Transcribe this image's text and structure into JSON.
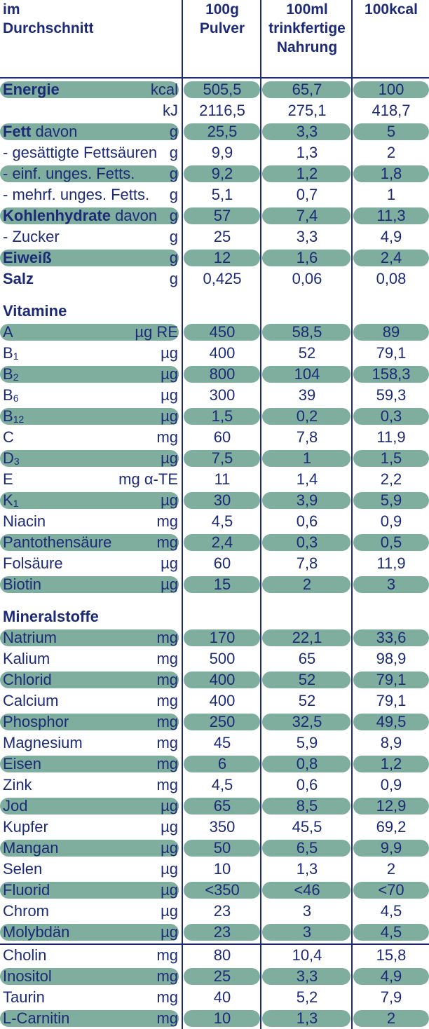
{
  "header": {
    "col0": [
      "im",
      "Durchschnitt"
    ],
    "col1": [
      "100g",
      "Pulver"
    ],
    "col2": [
      "100ml",
      "trinkfertige",
      "Nahrung"
    ],
    "col3": [
      "100kcal"
    ]
  },
  "sections": [
    {
      "title": "",
      "rows": [
        {
          "bold": "Energie",
          "rest": "",
          "sub": "",
          "unit": "kcal",
          "v1": "505,5",
          "v2": "65,7",
          "v3": "100",
          "band": true
        },
        {
          "bold": "",
          "rest": "",
          "sub": "",
          "unit": "kJ",
          "v1": "2116,5",
          "v2": "275,1",
          "v3": "418,7",
          "band": false
        },
        {
          "bold": "Fett",
          "rest": " davon",
          "sub": "",
          "unit": "g",
          "v1": "25,5",
          "v2": "3,3",
          "v3": "5",
          "band": true
        },
        {
          "bold": "",
          "rest": "- gesättigte Fettsäuren",
          "sub": "",
          "unit": "g",
          "v1": "9,9",
          "v2": "1,3",
          "v3": "2",
          "band": false
        },
        {
          "bold": "",
          "rest": "- einf. unges. Fetts.",
          "sub": "",
          "unit": "g",
          "v1": "9,2",
          "v2": "1,2",
          "v3": "1,8",
          "band": true
        },
        {
          "bold": "",
          "rest": "- mehrf. unges. Fetts.",
          "sub": "",
          "unit": "g",
          "v1": "5,1",
          "v2": "0,7",
          "v3": "1",
          "band": false
        },
        {
          "bold": "Kohlenhydrate",
          "rest": " davon",
          "sub": "",
          "unit": "g",
          "v1": "57",
          "v2": "7,4",
          "v3": "11,3",
          "band": true
        },
        {
          "bold": "",
          "rest": "- Zucker",
          "sub": "",
          "unit": "g",
          "v1": "25",
          "v2": "3,3",
          "v3": "4,9",
          "band": false
        },
        {
          "bold": "Eiweiß",
          "rest": "",
          "sub": "",
          "unit": "g",
          "v1": "12",
          "v2": "1,6",
          "v3": "2,4",
          "band": true
        },
        {
          "bold": "Salz",
          "rest": "",
          "sub": "",
          "unit": "g",
          "v1": "0,425",
          "v2": "0,06",
          "v3": "0,08",
          "band": false
        }
      ]
    },
    {
      "title": "Vitamine",
      "rows": [
        {
          "bold": "",
          "rest": "A",
          "sub": "",
          "unit": "µg RE",
          "v1": "450",
          "v2": "58,5",
          "v3": "89",
          "band": true
        },
        {
          "bold": "",
          "rest": "B",
          "sub": "1",
          "unit": "µg",
          "v1": "400",
          "v2": "52",
          "v3": "79,1",
          "band": false
        },
        {
          "bold": "",
          "rest": "B",
          "sub": "2",
          "unit": "µg",
          "v1": "800",
          "v2": "104",
          "v3": "158,3",
          "band": true
        },
        {
          "bold": "",
          "rest": "B",
          "sub": "6",
          "unit": "µg",
          "v1": "300",
          "v2": "39",
          "v3": "59,3",
          "band": false
        },
        {
          "bold": "",
          "rest": "B",
          "sub": "12",
          "unit": "µg",
          "v1": "1,5",
          "v2": "0,2",
          "v3": "0,3",
          "band": true
        },
        {
          "bold": "",
          "rest": "C",
          "sub": "",
          "unit": "mg",
          "v1": "60",
          "v2": "7,8",
          "v3": "11,9",
          "band": false
        },
        {
          "bold": "",
          "rest": "D",
          "sub": "3",
          "unit": "µg",
          "v1": "7,5",
          "v2": "1",
          "v3": "1,5",
          "band": true
        },
        {
          "bold": "",
          "rest": "E",
          "sub": "",
          "unit": "mg α-TE",
          "v1": "11",
          "v2": "1,4",
          "v3": "2,2",
          "band": false
        },
        {
          "bold": "",
          "rest": "K",
          "sub": "1",
          "unit": "µg",
          "v1": "30",
          "v2": "3,9",
          "v3": "5,9",
          "band": true
        },
        {
          "bold": "",
          "rest": "Niacin",
          "sub": "",
          "unit": "mg",
          "v1": "4,5",
          "v2": "0,6",
          "v3": "0,9",
          "band": false
        },
        {
          "bold": "",
          "rest": "Pantothensäure",
          "sub": "",
          "unit": "mg",
          "v1": "2,4",
          "v2": "0,3",
          "v3": "0,5",
          "band": true
        },
        {
          "bold": "",
          "rest": "Folsäure",
          "sub": "",
          "unit": "µg",
          "v1": "60",
          "v2": "7,8",
          "v3": "11,9",
          "band": false
        },
        {
          "bold": "",
          "rest": "Biotin",
          "sub": "",
          "unit": "µg",
          "v1": "15",
          "v2": "2",
          "v3": "3",
          "band": true
        }
      ]
    },
    {
      "title": "Mineralstoffe",
      "rows": [
        {
          "bold": "",
          "rest": "Natrium",
          "sub": "",
          "unit": "mg",
          "v1": "170",
          "v2": "22,1",
          "v3": "33,6",
          "band": true
        },
        {
          "bold": "",
          "rest": "Kalium",
          "sub": "",
          "unit": "mg",
          "v1": "500",
          "v2": "65",
          "v3": "98,9",
          "band": false
        },
        {
          "bold": "",
          "rest": "Chlorid",
          "sub": "",
          "unit": "mg",
          "v1": "400",
          "v2": "52",
          "v3": "79,1",
          "band": true
        },
        {
          "bold": "",
          "rest": "Calcium",
          "sub": "",
          "unit": "mg",
          "v1": "400",
          "v2": "52",
          "v3": "79,1",
          "band": false
        },
        {
          "bold": "",
          "rest": "Phosphor",
          "sub": "",
          "unit": "mg",
          "v1": "250",
          "v2": "32,5",
          "v3": "49,5",
          "band": true
        },
        {
          "bold": "",
          "rest": "Magnesium",
          "sub": "",
          "unit": "mg",
          "v1": "45",
          "v2": "5,9",
          "v3": "8,9",
          "band": false
        },
        {
          "bold": "",
          "rest": "Eisen",
          "sub": "",
          "unit": "mg",
          "v1": "6",
          "v2": "0,8",
          "v3": "1,2",
          "band": true
        },
        {
          "bold": "",
          "rest": "Zink",
          "sub": "",
          "unit": "mg",
          "v1": "4,5",
          "v2": "0,6",
          "v3": "0,9",
          "band": false
        },
        {
          "bold": "",
          "rest": "Jod",
          "sub": "",
          "unit": "µg",
          "v1": "65",
          "v2": "8,5",
          "v3": "12,9",
          "band": true
        },
        {
          "bold": "",
          "rest": "Kupfer",
          "sub": "",
          "unit": "µg",
          "v1": "350",
          "v2": "45,5",
          "v3": "69,2",
          "band": false
        },
        {
          "bold": "",
          "rest": "Mangan",
          "sub": "",
          "unit": "µg",
          "v1": "50",
          "v2": "6,5",
          "v3": "9,9",
          "band": true
        },
        {
          "bold": "",
          "rest": "Selen",
          "sub": "",
          "unit": "µg",
          "v1": "10",
          "v2": "1,3",
          "v3": "2",
          "band": false
        },
        {
          "bold": "",
          "rest": "Fluorid",
          "sub": "",
          "unit": "µg",
          "v1": "<350",
          "v2": "<46",
          "v3": "<70",
          "band": true
        },
        {
          "bold": "",
          "rest": "Chrom",
          "sub": "",
          "unit": "µg",
          "v1": "23",
          "v2": "3",
          "v3": "4,5",
          "band": false
        },
        {
          "bold": "",
          "rest": "Molybdän",
          "sub": "",
          "unit": "µg",
          "v1": "23",
          "v2": "3",
          "v3": "4,5",
          "band": true
        }
      ]
    },
    {
      "title": "",
      "rows": [
        {
          "bold": "",
          "rest": "Cholin",
          "sub": "",
          "unit": "mg",
          "v1": "80",
          "v2": "10,4",
          "v3": "15,8",
          "band": false
        },
        {
          "bold": "",
          "rest": "Inositol",
          "sub": "",
          "unit": "mg",
          "v1": "25",
          "v2": "3,3",
          "v3": "4,9",
          "band": true
        },
        {
          "bold": "",
          "rest": "Taurin",
          "sub": "",
          "unit": "mg",
          "v1": "40",
          "v2": "5,2",
          "v3": "7,9",
          "band": false
        },
        {
          "bold": "",
          "rest": "L-Carnitin",
          "sub": "",
          "unit": "mg",
          "v1": "10",
          "v2": "1,3",
          "v3": "2",
          "band": true
        }
      ]
    }
  ],
  "colors": {
    "text": "#1d2a78",
    "band": "#7fae9f",
    "background": "#ffffff"
  }
}
